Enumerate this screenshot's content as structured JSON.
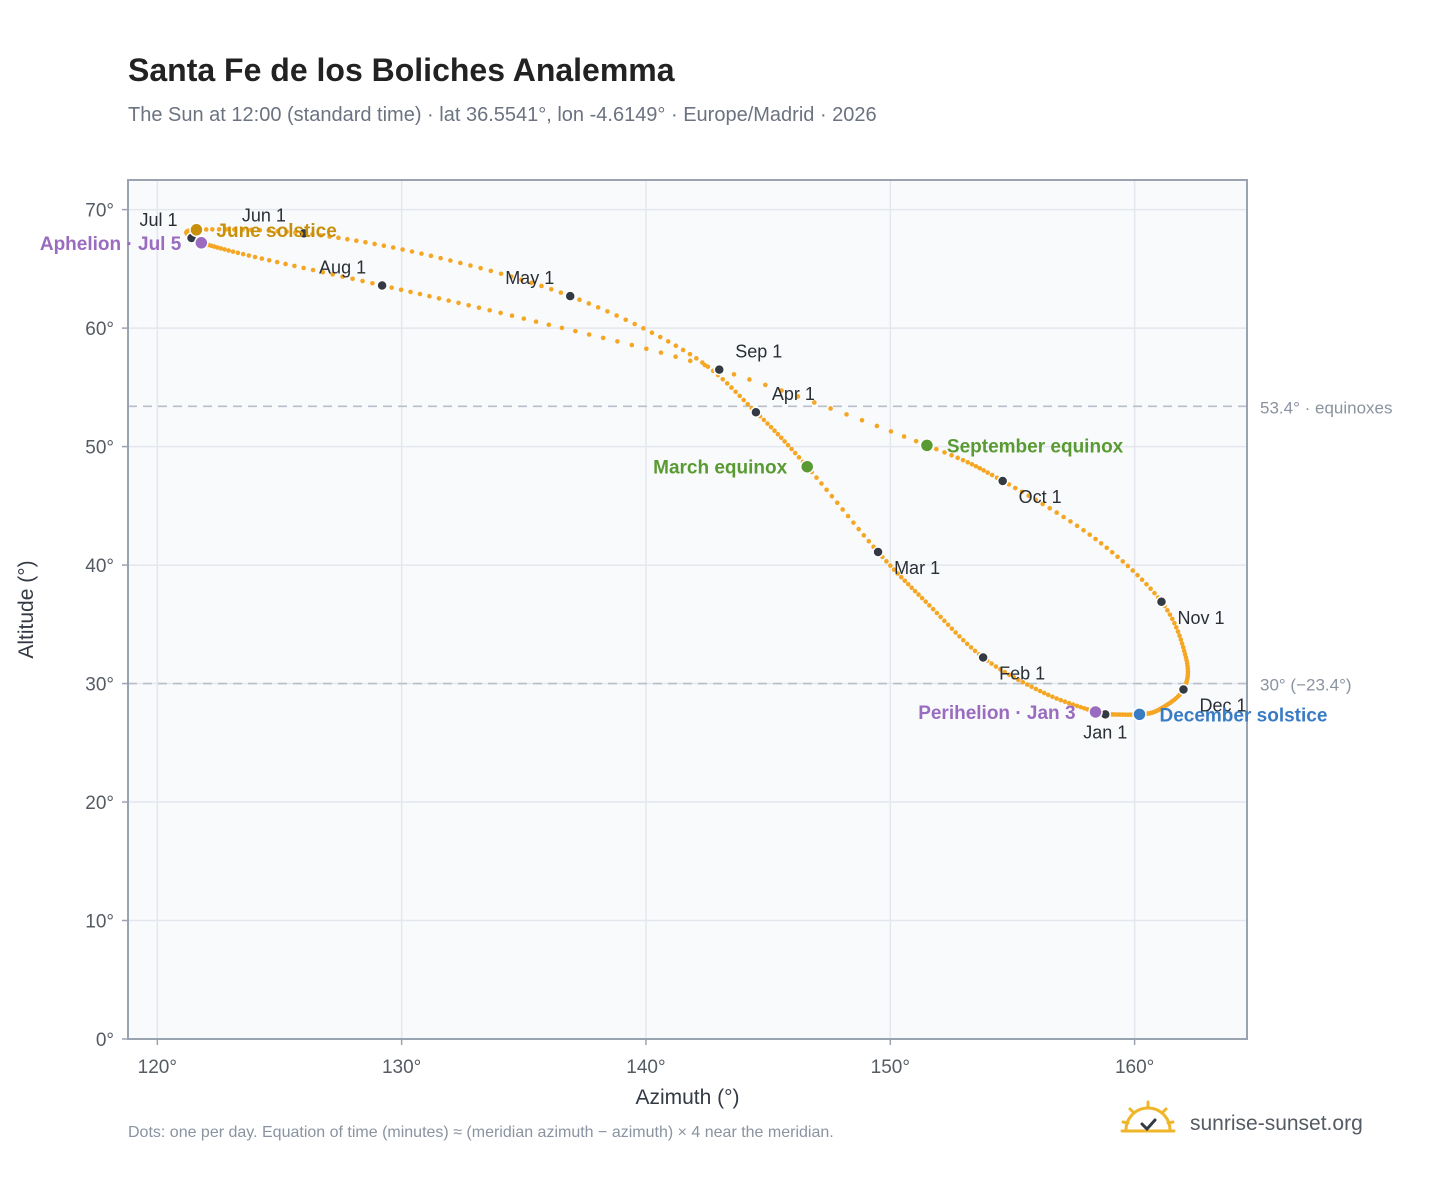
{
  "page": {
    "title": "Santa Fe de los Boliches Analemma",
    "subtitle": "The Sun at 12:00 (standard time) · lat 36.5541°, lon -4.6149° · Europe/Madrid · 2026",
    "footnote": "Dots: one per day. Equation of time (minutes) ≈ (meridian azimuth − azimuth) × 4 near the meridian.",
    "brand": "sunrise-sunset.org"
  },
  "colors": {
    "curve": "#f5a623",
    "month_dot": "#333a44",
    "equinox": "#5a9a32",
    "june_solstice": "#c8900a",
    "december_solstice": "#3a7cc4",
    "apsis": "#9a6cc0",
    "grid": "#e4e8ee",
    "plot_bg": "#f8fafc",
    "frame": "#9aa3b2",
    "ref_line": "#b6bfca",
    "brand_sun": "#f0b62a"
  },
  "chart_data": {
    "type": "scatter",
    "xlabel": "Azimuth (°)",
    "ylabel": "Altitude (°)",
    "xlim": [
      118.8,
      164.6
    ],
    "ylim": [
      0,
      72.5
    ],
    "x_ticks": [
      120,
      130,
      140,
      150,
      160
    ],
    "y_ticks": [
      0,
      10,
      20,
      30,
      40,
      50,
      60,
      70
    ],
    "x_tick_labels": [
      "120°",
      "130°",
      "140°",
      "150°",
      "160°"
    ],
    "y_tick_labels": [
      "0°",
      "10°",
      "20°",
      "30°",
      "40°",
      "50°",
      "60°",
      "70°"
    ],
    "grid": true,
    "series_path": [
      {
        "date": "Jan 1",
        "az": 158.8,
        "alt": 27.4
      },
      {
        "date": "Jan 3",
        "az": 158.4,
        "alt": 27.6
      },
      {
        "date": "Jan 15",
        "az": 156.3,
        "alt": 29.2
      },
      {
        "date": "Feb 1",
        "az": 153.8,
        "alt": 32.2
      },
      {
        "date": "Feb 15",
        "az": 151.6,
        "alt": 36.6
      },
      {
        "date": "Mar 1",
        "az": 149.5,
        "alt": 41.1
      },
      {
        "date": "Mar 20",
        "az": 146.6,
        "alt": 48.3
      },
      {
        "date": "Apr 1",
        "az": 144.5,
        "alt": 52.9
      },
      {
        "date": "Apr 15",
        "az": 141.8,
        "alt": 57.8
      },
      {
        "date": "May 1",
        "az": 136.9,
        "alt": 62.7
      },
      {
        "date": "May 15",
        "az": 131.2,
        "alt": 66.1
      },
      {
        "date": "Jun 1",
        "az": 126.0,
        "alt": 68.0
      },
      {
        "date": "Jun 21",
        "az": 121.6,
        "alt": 68.3
      },
      {
        "date": "Jul 1",
        "az": 121.4,
        "alt": 67.6
      },
      {
        "date": "Jul 5",
        "az": 121.8,
        "alt": 67.2
      },
      {
        "date": "Jul 15",
        "az": 124.0,
        "alt": 66.0
      },
      {
        "date": "Aug 1",
        "az": 129.2,
        "alt": 63.6
      },
      {
        "date": "Aug 15",
        "az": 135.0,
        "alt": 60.8
      },
      {
        "date": "Sep 1",
        "az": 143.0,
        "alt": 56.5
      },
      {
        "date": "Sep 23",
        "az": 151.5,
        "alt": 50.1
      },
      {
        "date": "Oct 1",
        "az": 154.6,
        "alt": 47.1
      },
      {
        "date": "Oct 15",
        "az": 158.4,
        "alt": 42.2
      },
      {
        "date": "Nov 1",
        "az": 161.1,
        "alt": 36.9
      },
      {
        "date": "Nov 15",
        "az": 162.1,
        "alt": 32.2
      },
      {
        "date": "Dec 1",
        "az": 162.0,
        "alt": 29.5
      },
      {
        "date": "Dec 15",
        "az": 161.0,
        "alt": 27.8
      },
      {
        "date": "Dec 21",
        "az": 160.2,
        "alt": 27.4
      },
      {
        "date": "Dec 31",
        "az": 158.9,
        "alt": 27.4
      }
    ],
    "month_markers": [
      {
        "label": "Jan 1",
        "az": 158.8,
        "alt": 27.4,
        "anchor": "below"
      },
      {
        "label": "Feb 1",
        "az": 153.8,
        "alt": 32.2,
        "anchor": "below-right"
      },
      {
        "label": "Mar 1",
        "az": 149.5,
        "alt": 41.1,
        "anchor": "below-right"
      },
      {
        "label": "Apr 1",
        "az": 144.5,
        "alt": 52.9,
        "anchor": "above-right"
      },
      {
        "label": "May 1",
        "az": 136.9,
        "alt": 62.7,
        "anchor": "above-left"
      },
      {
        "label": "Jun 1",
        "az": 126.0,
        "alt": 68.0,
        "anchor": "above-left"
      },
      {
        "label": "Jul 1",
        "az": 121.4,
        "alt": 67.6,
        "anchor": "above-left"
      },
      {
        "label": "Aug 1",
        "az": 129.2,
        "alt": 63.6,
        "anchor": "above-left"
      },
      {
        "label": "Sep 1",
        "az": 143.0,
        "alt": 56.5,
        "anchor": "above-right"
      },
      {
        "label": "Oct 1",
        "az": 154.6,
        "alt": 47.1,
        "anchor": "below-right"
      },
      {
        "label": "Nov 1",
        "az": 161.1,
        "alt": 36.9,
        "anchor": "below-right"
      },
      {
        "label": "Dec 1",
        "az": 162.0,
        "alt": 29.5,
        "anchor": "below-right"
      }
    ],
    "events": [
      {
        "label": "June solstice",
        "az": 121.6,
        "alt": 68.3,
        "color_key": "june_solstice",
        "side": "right"
      },
      {
        "label": "Aphelion · Jul 5",
        "az": 121.8,
        "alt": 67.2,
        "color_key": "apsis",
        "side": "left"
      },
      {
        "label": "March equinox",
        "az": 146.6,
        "alt": 48.3,
        "color_key": "equinox",
        "side": "left"
      },
      {
        "label": "September equinox",
        "az": 151.5,
        "alt": 50.1,
        "color_key": "equinox",
        "side": "right"
      },
      {
        "label": "Perihelion · Jan 3",
        "az": 158.4,
        "alt": 27.6,
        "color_key": "apsis",
        "side": "left"
      },
      {
        "label": "December solstice",
        "az": 160.2,
        "alt": 27.4,
        "color_key": "december_solstice",
        "side": "right"
      }
    ],
    "reference_lines": [
      {
        "alt": 53.4,
        "label": "53.4° · equinoxes"
      },
      {
        "alt": 30,
        "label": "30° (−23.4°)"
      }
    ]
  }
}
